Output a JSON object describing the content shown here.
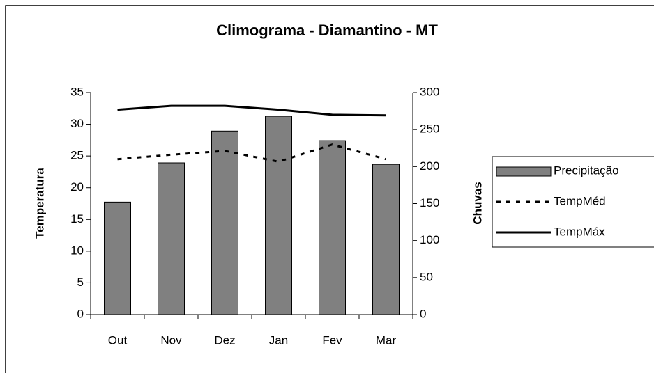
{
  "chart_data": {
    "type": "bar",
    "title": "Climograma - Diamantino - MT",
    "categories": [
      "Out",
      "Nov",
      "Dez",
      "Jan",
      "Fev",
      "Mar"
    ],
    "series": [
      {
        "name": "Precipitação",
        "type": "bar",
        "axis": "y2",
        "color": "#808080",
        "values": [
          152,
          205,
          248,
          268,
          235,
          203
        ]
      },
      {
        "name": "TempMéd",
        "type": "line",
        "dash": "dotted",
        "color": "#000000",
        "values": [
          24.5,
          25.2,
          25.8,
          24.1,
          26.8,
          24.5
        ]
      },
      {
        "name": "TempMáx",
        "type": "line",
        "dash": "solid",
        "color": "#000000",
        "values": [
          32.3,
          32.9,
          32.9,
          32.3,
          31.5,
          31.4
        ]
      }
    ],
    "ylabel": "Temperatura",
    "y2label": "Chuvas",
    "ylim": [
      0,
      35
    ],
    "yticks": [
      0,
      5,
      10,
      15,
      20,
      25,
      30,
      35
    ],
    "y2lim": [
      0,
      300
    ],
    "y2ticks": [
      0,
      50,
      100,
      150,
      200,
      250,
      300
    ],
    "legend": "right"
  }
}
